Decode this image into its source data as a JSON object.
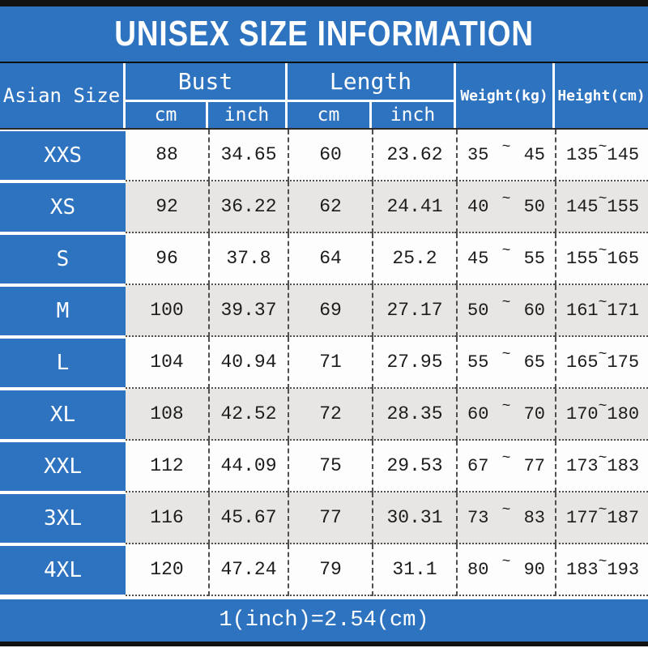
{
  "title": "UNISEX SIZE INFORMATION",
  "header": {
    "size_label": "Asian Size",
    "bust_label": "Bust",
    "length_label": "Length",
    "cm_label": "cm",
    "inch_label": "inch",
    "weight_label": "Weight(kg)",
    "height_label": "Height(cm)"
  },
  "tilde": "~",
  "rows": [
    {
      "size": "XXS",
      "bust_cm": "88",
      "bust_inch": "34.65",
      "length_cm": "60",
      "length_inch": "23.62",
      "weight_min": "35",
      "weight_max": "45",
      "height_min": "135",
      "height_max": "145"
    },
    {
      "size": "XS",
      "bust_cm": "92",
      "bust_inch": "36.22",
      "length_cm": "62",
      "length_inch": "24.41",
      "weight_min": "40",
      "weight_max": "50",
      "height_min": "145",
      "height_max": "155"
    },
    {
      "size": "S",
      "bust_cm": "96",
      "bust_inch": "37.8",
      "length_cm": "64",
      "length_inch": "25.2",
      "weight_min": "45",
      "weight_max": "55",
      "height_min": "155",
      "height_max": "165"
    },
    {
      "size": "M",
      "bust_cm": "100",
      "bust_inch": "39.37",
      "length_cm": "69",
      "length_inch": "27.17",
      "weight_min": "50",
      "weight_max": "60",
      "height_min": "161",
      "height_max": "171"
    },
    {
      "size": "L",
      "bust_cm": "104",
      "bust_inch": "40.94",
      "length_cm": "71",
      "length_inch": "27.95",
      "weight_min": "55",
      "weight_max": "65",
      "height_min": "165",
      "height_max": "175"
    },
    {
      "size": "XL",
      "bust_cm": "108",
      "bust_inch": "42.52",
      "length_cm": "72",
      "length_inch": "28.35",
      "weight_min": "60",
      "weight_max": "70",
      "height_min": "170",
      "height_max": "180"
    },
    {
      "size": "XXL",
      "bust_cm": "112",
      "bust_inch": "44.09",
      "length_cm": "75",
      "length_inch": "29.53",
      "weight_min": "67",
      "weight_max": "77",
      "height_min": "173",
      "height_max": "183"
    },
    {
      "size": "3XL",
      "bust_cm": "116",
      "bust_inch": "45.67",
      "length_cm": "77",
      "length_inch": "30.31",
      "weight_min": "73",
      "weight_max": "83",
      "height_min": "177",
      "height_max": "187"
    },
    {
      "size": "4XL",
      "bust_cm": "120",
      "bust_inch": "47.24",
      "length_cm": "79",
      "length_inch": "31.1",
      "weight_min": "80",
      "weight_max": "90",
      "height_min": "183",
      "height_max": "193"
    }
  ],
  "footer": "1(inch)=2.54(cm)",
  "colors": {
    "accent_blue": "#2e73c0",
    "row_alt_gray": "#e8e6e4",
    "bar_black": "#121212"
  }
}
